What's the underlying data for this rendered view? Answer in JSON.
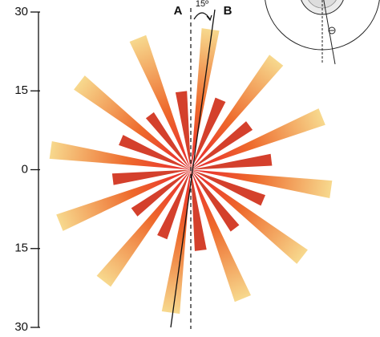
{
  "chart_data": {
    "type": "rose",
    "ylim": [
      -30,
      30
    ],
    "yticks": [
      {
        "value": -30,
        "label": "30"
      },
      {
        "value": -15,
        "label": "15"
      },
      0,
      15,
      30
    ],
    "series": [
      {
        "color": "#f7d98e",
        "x": [
          8,
          38,
          68,
          98,
          128,
          158,
          188,
          218,
          248,
          278,
          308,
          338
        ],
        "values": [
          27,
          26.5,
          27,
          27,
          27,
          26.5,
          27.5,
          27,
          27,
          27,
          27,
          27
        ]
      },
      {
        "color": "#d4402c",
        "x": [
          23,
          53,
          83,
          113,
          143,
          173,
          203,
          233,
          263,
          293,
          323,
          353
        ],
        "values": [
          14.5,
          14,
          15.5,
          15,
          14,
          15.5,
          14,
          13.5,
          15,
          14.5,
          13,
          15
        ]
      }
    ],
    "annotations": {
      "a": "A",
      "b": "B",
      "angle": "15º"
    }
  }
}
